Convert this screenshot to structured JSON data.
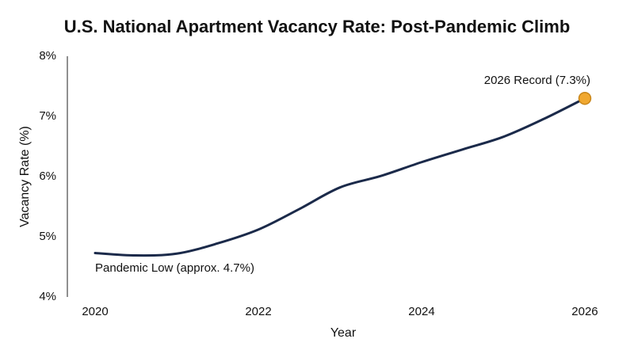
{
  "chart_data": {
    "type": "line",
    "title": "U.S. National Apartment Vacancy Rate: Post-Pandemic Climb",
    "x_label": "Year",
    "y_label": "Vacancy Rate (%)",
    "x": [
      2020,
      2020.5,
      2021,
      2021.5,
      2022,
      2022.5,
      2023,
      2023.5,
      2024,
      2024.5,
      2025,
      2025.5,
      2026
    ],
    "series": [
      {
        "name": "Vacancy Rate",
        "color": "#1b2a4a",
        "values": [
          4.73,
          4.69,
          4.72,
          4.89,
          5.12,
          5.46,
          5.82,
          6.01,
          6.24,
          6.45,
          6.66,
          6.96,
          7.3
        ]
      }
    ],
    "xlim": [
      2019.66,
      2026.34
    ],
    "xticks": [
      2020,
      2022,
      2024,
      2026
    ],
    "ylim": [
      4,
      8
    ],
    "yticks": [
      {
        "value": 4,
        "label": "4%"
      },
      {
        "value": 5,
        "label": "5%"
      },
      {
        "value": 6,
        "label": "6%"
      },
      {
        "value": 7,
        "label": "7%"
      },
      {
        "value": 8,
        "label": "8%"
      }
    ],
    "grid": false,
    "highlight_color": "#f0a830",
    "annotations": [
      {
        "text": "Pandemic Low (approx. 4.7%)"
      },
      {
        "text": "2026 Record (7.3%)"
      }
    ]
  }
}
